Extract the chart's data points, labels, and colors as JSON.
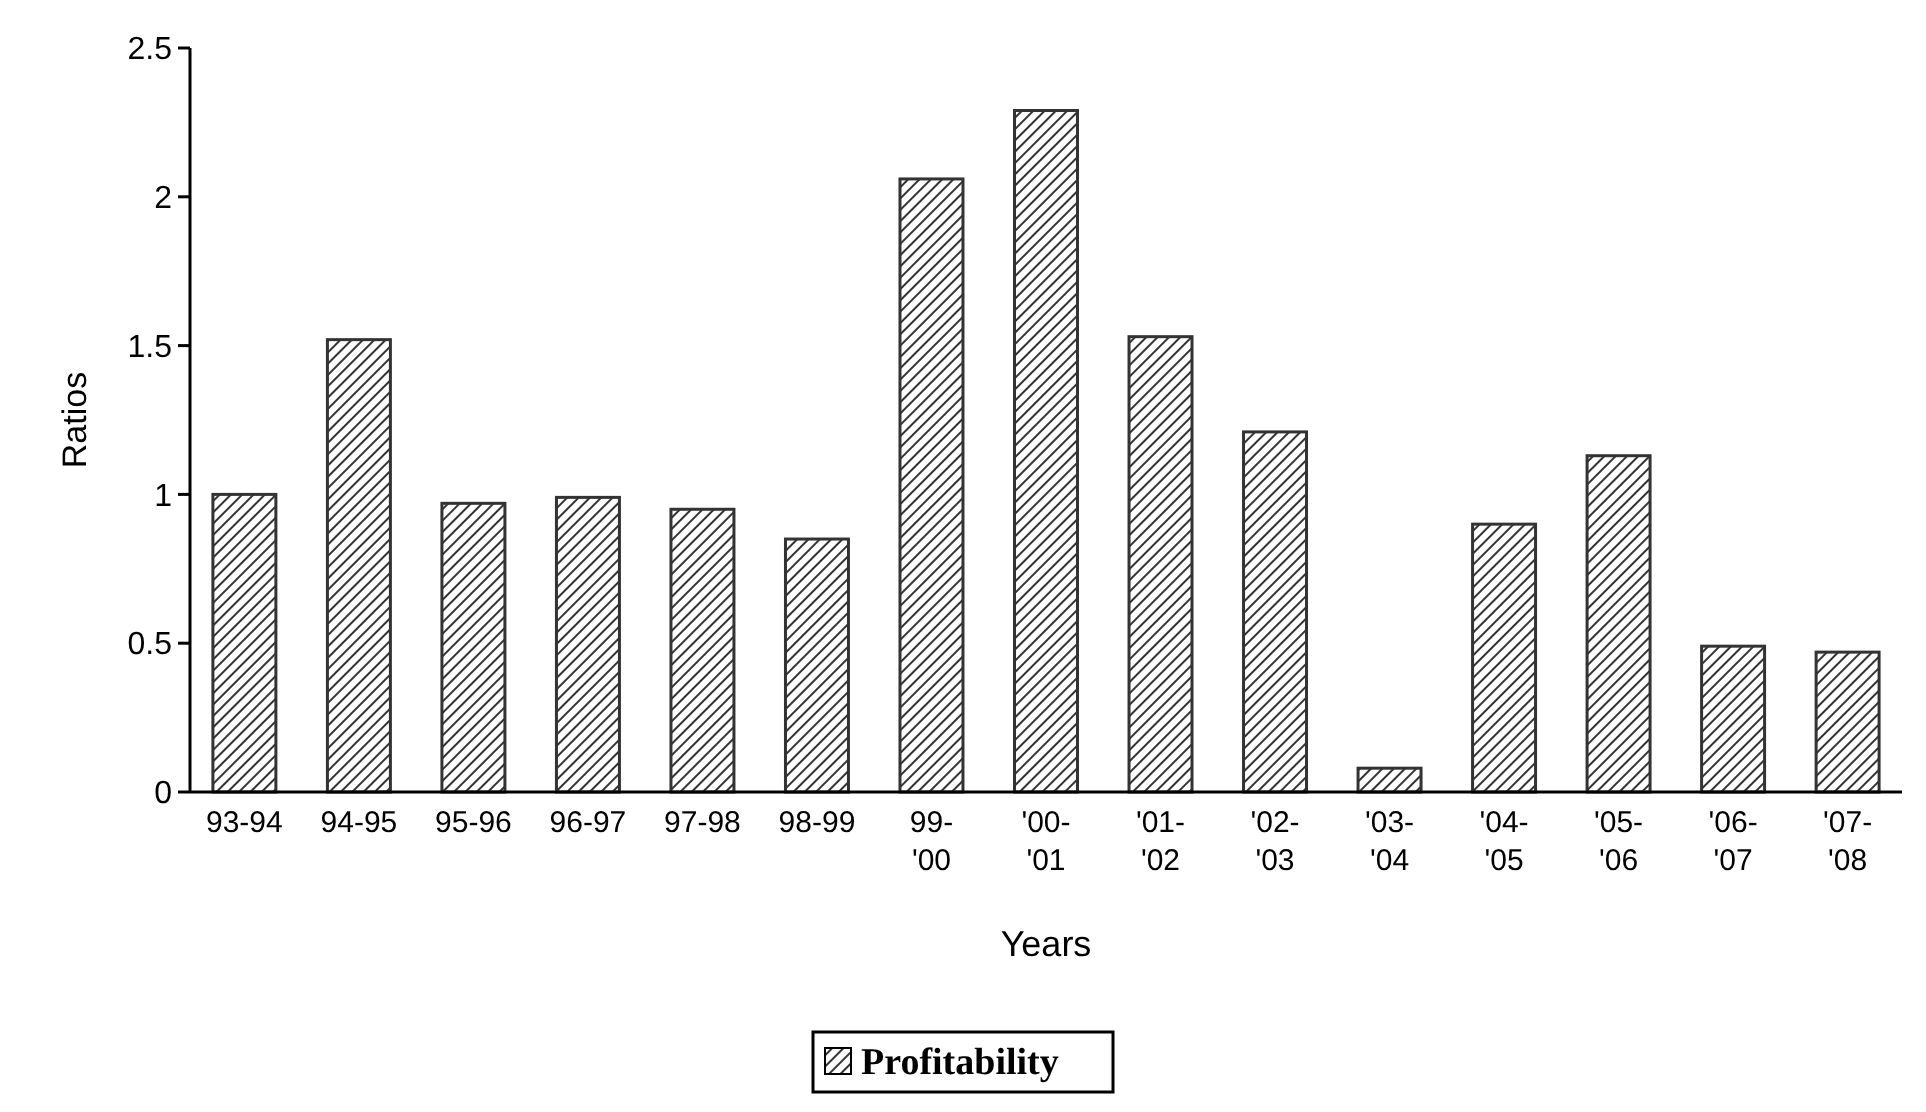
{
  "chart_data": {
    "type": "bar",
    "xlabel": "Years",
    "ylabel": "Ratios",
    "categories": [
      "93-94",
      "94-95",
      "95-96",
      "96-97",
      "97-98",
      "98-99",
      "99-'00",
      "'00-'01",
      "'01-'02",
      "'02-'03",
      "'03-'04",
      "'04-'05",
      "'05-'06",
      "'06-'07",
      "'07-'08"
    ],
    "series": [
      {
        "name": "Profitability",
        "color": "#333333",
        "values": [
          1.0,
          1.52,
          0.97,
          0.99,
          0.95,
          0.85,
          2.06,
          2.29,
          1.53,
          1.21,
          0.08,
          0.9,
          1.13,
          0.49,
          0.47
        ]
      }
    ],
    "ylim": [
      0,
      2.5
    ],
    "yticks": [
      0,
      0.5,
      1,
      1.5,
      2,
      2.5
    ],
    "grid": false,
    "legend": "bottom"
  }
}
